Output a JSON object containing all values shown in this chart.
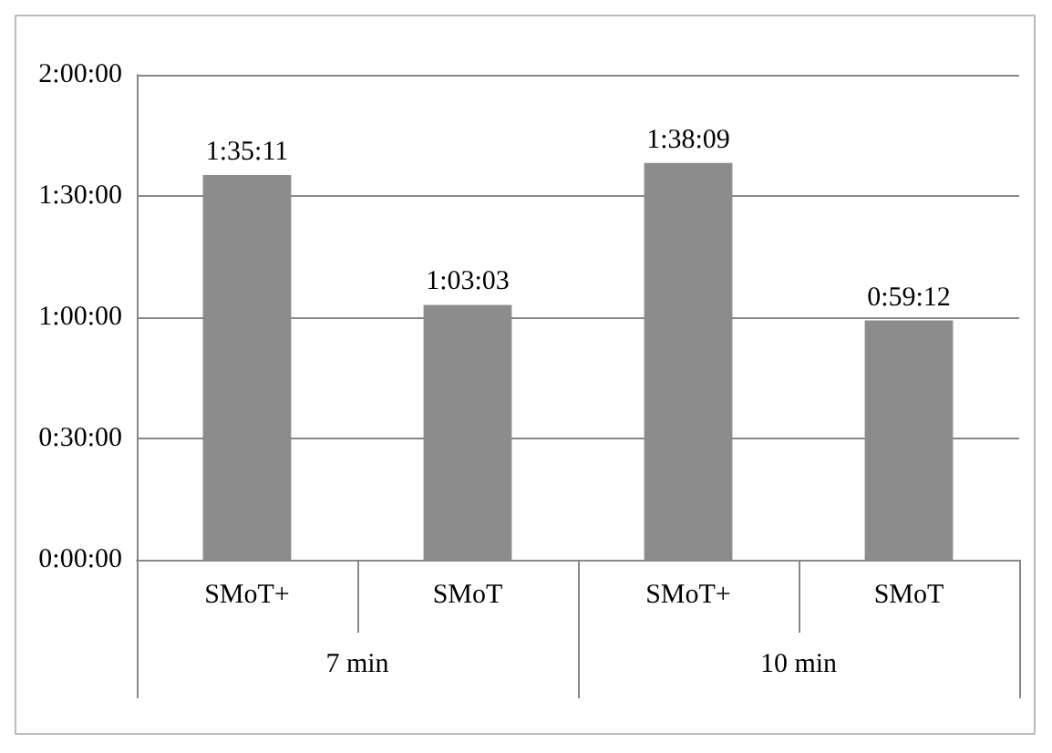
{
  "chart_data": {
    "type": "bar",
    "categories": [
      "SMoT+",
      "SMoT",
      "SMoT+",
      "SMoT"
    ],
    "values": [
      5711,
      3783,
      5889,
      3552
    ],
    "color": "#8c8c8c",
    "value_labels": [
      "1:35:11",
      "1:03:03",
      "1:38:09",
      "0:59:12"
    ],
    "ylim": [
      0,
      7200
    ],
    "yticks": [
      {
        "value": 0,
        "label": "0:00:00"
      },
      {
        "value": 1800,
        "label": "0:30:00"
      },
      {
        "value": 3600,
        "label": "1:00:00"
      },
      {
        "value": 5400,
        "label": "1:30:00"
      },
      {
        "value": 7200,
        "label": "2:00:00"
      }
    ],
    "grid": "y",
    "annotations": [
      "7 min",
      "10 min"
    ]
  }
}
